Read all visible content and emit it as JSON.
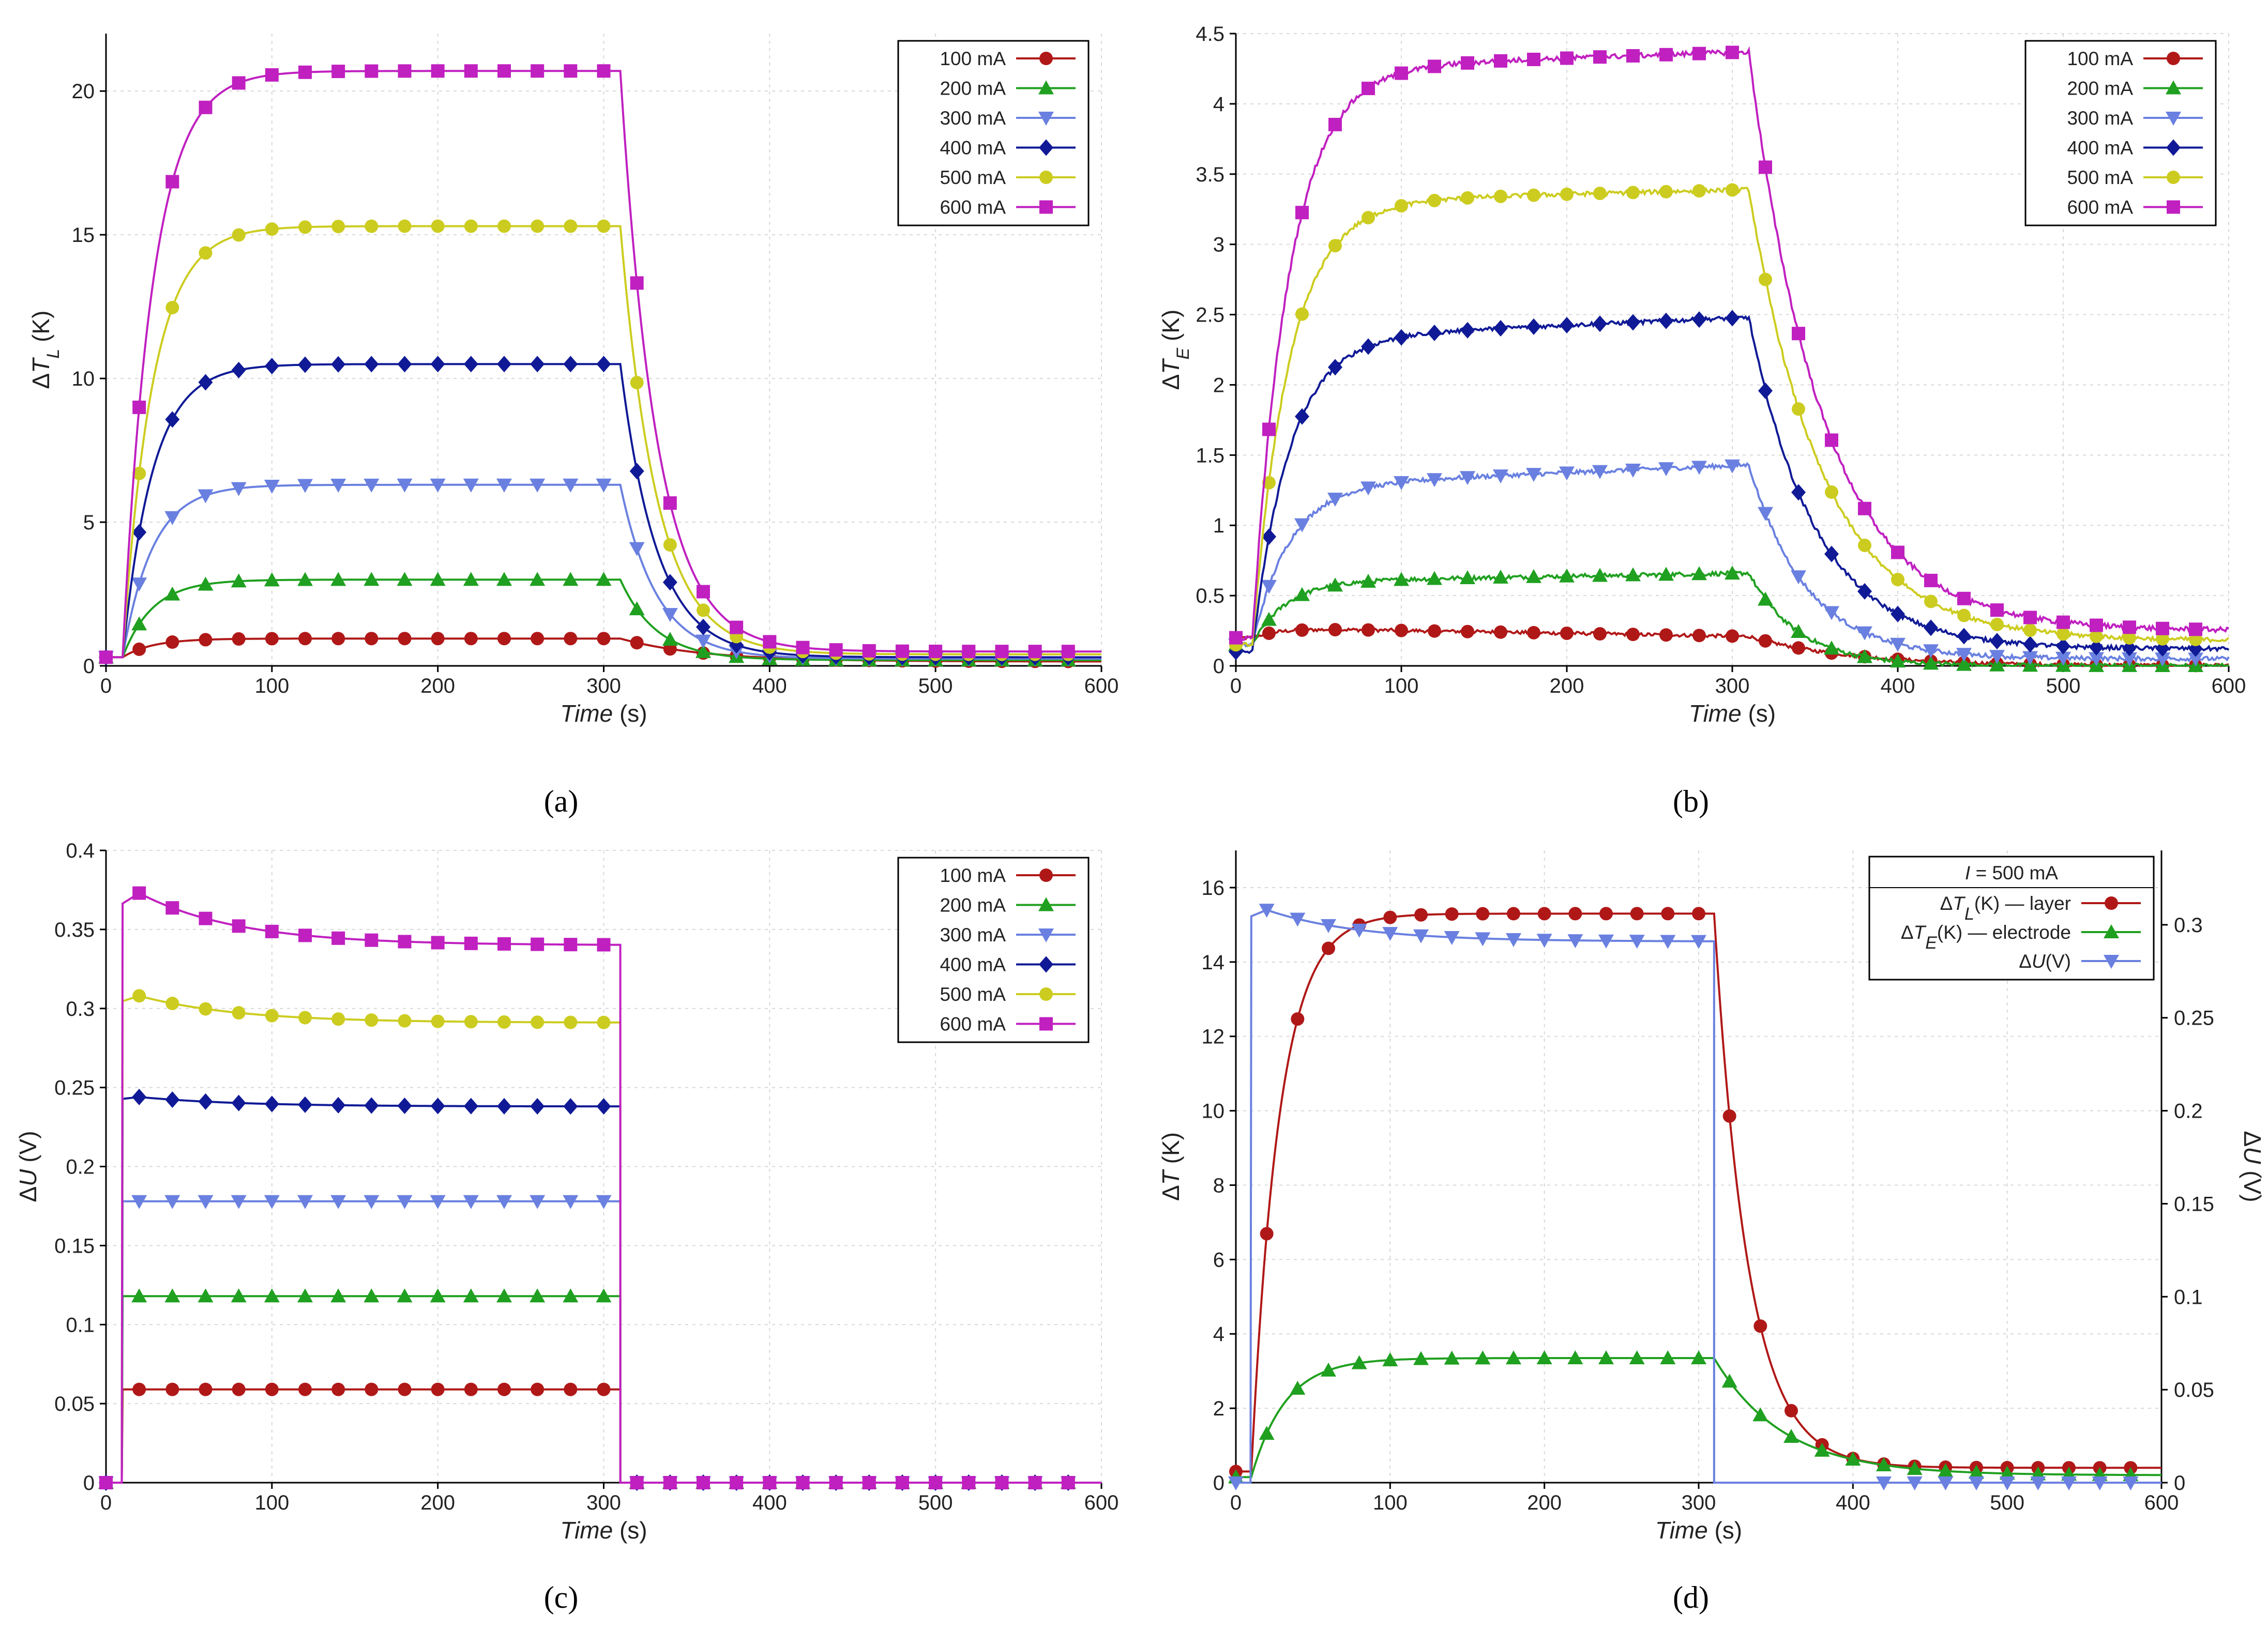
{
  "figure": {
    "captions": [
      "(a)",
      "(b)",
      "(c)",
      "(d)"
    ]
  },
  "colors": {
    "100 mA": "#b01818",
    "200 mA": "#20a020",
    "300 mA": "#6a80e0",
    "400 mA": "#101a96",
    "500 mA": "#cccc20",
    "600 mA": "#c020c0"
  },
  "chart_data": [
    {
      "id": "a",
      "type": "line",
      "xlabel_italic": "Time",
      "xlabel_unit": " (s)",
      "ylabel": "ΔT_L (K)",
      "xlim": [
        0,
        600
      ],
      "ylim": [
        0,
        22
      ],
      "xticks": [
        0,
        100,
        200,
        300,
        400,
        500,
        600
      ],
      "yticks": [
        0,
        5,
        10,
        15,
        20
      ],
      "ytick_labels": [
        "0",
        "5",
        "10",
        "15",
        "20"
      ],
      "legend": [
        "100 mA",
        "200 mA",
        "300 mA",
        "400 mA",
        "500 mA",
        "600 mA"
      ],
      "series": [
        {
          "name": "100 mA",
          "marker": "circle",
          "kind": "thermal",
          "start": 0.3,
          "plateau": 0.95,
          "tau": 18,
          "end": 0.15,
          "tauOff": 50,
          "noise": 0
        },
        {
          "name": "200 mA",
          "marker": "triangle-up",
          "kind": "thermal",
          "start": 0.3,
          "plateau": 3.0,
          "tau": 18,
          "end": 0.2,
          "tauOff": 22,
          "noise": 0
        },
        {
          "name": "300 mA",
          "marker": "triangle-down",
          "kind": "thermal",
          "start": 0.3,
          "plateau": 6.3,
          "tau": 18,
          "end": 0.25,
          "tauOff": 22,
          "noise": 0
        },
        {
          "name": "400 mA",
          "marker": "diamond",
          "kind": "thermal",
          "start": 0.3,
          "plateau": 10.5,
          "tau": 18,
          "end": 0.3,
          "tauOff": 22,
          "noise": 0
        },
        {
          "name": "500 mA",
          "marker": "circle",
          "kind": "thermal",
          "start": 0.3,
          "plateau": 15.3,
          "tau": 18,
          "end": 0.4,
          "tauOff": 22,
          "noise": 0
        },
        {
          "name": "600 mA",
          "marker": "square",
          "kind": "thermal",
          "start": 0.3,
          "plateau": 20.7,
          "tau": 18,
          "end": 0.5,
          "tauOff": 22,
          "noise": 0
        }
      ]
    },
    {
      "id": "b",
      "type": "line",
      "xlabel_italic": "Time",
      "xlabel_unit": " (s)",
      "ylabel": "ΔT_E (K)",
      "xlim": [
        0,
        600
      ],
      "ylim": [
        0,
        4.5
      ],
      "xticks": [
        0,
        100,
        200,
        300,
        400,
        500,
        600
      ],
      "yticks": [
        0,
        0.5,
        1,
        1.5,
        2,
        2.5,
        3,
        3.5,
        4,
        4.5
      ],
      "ytick_labels": [
        "0",
        "0.5",
        "1",
        "1.5",
        "2",
        "2.5",
        "3",
        "3.5",
        "4",
        "4.5"
      ],
      "legend": [
        "100 mA",
        "200 mA",
        "300 mA",
        "400 mA",
        "500 mA",
        "600 mA"
      ],
      "series": [
        {
          "name": "100 mA",
          "marker": "circle",
          "kind": "thermal",
          "start": 0.2,
          "plateau": 0.27,
          "tau": 15,
          "end": 0.0,
          "tauOff": 60,
          "noise": 0.012,
          "drift": -0.0002
        },
        {
          "name": "200 mA",
          "marker": "triangle-up",
          "kind": "thermal",
          "start": 0.15,
          "plateau": 0.6,
          "tau": 20,
          "end": 0.0,
          "tauOff": 30,
          "noise": 0.015,
          "drift": 0.0002
        },
        {
          "name": "300 mA",
          "marker": "triangle-down",
          "kind": "thermal",
          "start": 0.15,
          "plateau": 1.28,
          "tau": 22,
          "end": 0.05,
          "tauOff": 35,
          "noise": 0.015,
          "drift": 0.0005
        },
        {
          "name": "400 mA",
          "marker": "diamond",
          "kind": "thermal",
          "start": 0.1,
          "plateau": 2.33,
          "tau": 22,
          "end": 0.12,
          "tauOff": 40,
          "noise": 0.015,
          "drift": 0.0005
        },
        {
          "name": "500 mA",
          "marker": "circle",
          "kind": "thermal",
          "start": 0.15,
          "plateau": 3.3,
          "tau": 22,
          "end": 0.18,
          "tauOff": 45,
          "noise": 0.015,
          "drift": 0.0003
        },
        {
          "name": "600 mA",
          "marker": "square",
          "kind": "thermal",
          "start": 0.2,
          "plateau": 4.25,
          "tau": 22,
          "end": 0.25,
          "tauOff": 45,
          "noise": 0.018,
          "drift": 0.0004
        }
      ]
    },
    {
      "id": "c",
      "type": "line",
      "xlabel_italic": "Time",
      "xlabel_unit": " (s)",
      "ylabel": "ΔU (V)",
      "xlim": [
        0,
        600
      ],
      "ylim": [
        0,
        0.4
      ],
      "xticks": [
        0,
        100,
        200,
        300,
        400,
        500,
        600
      ],
      "yticks": [
        0,
        0.05,
        0.1,
        0.15,
        0.2,
        0.25,
        0.3,
        0.35,
        0.4
      ],
      "ytick_labels": [
        "0",
        "0.05",
        "0.1",
        "0.15",
        "0.2",
        "0.25",
        "0.3",
        "0.35",
        "0.4"
      ],
      "legend": [
        "100 mA",
        "200 mA",
        "300 mA",
        "400 mA",
        "500 mA",
        "600 mA"
      ],
      "series": [
        {
          "name": "100 mA",
          "marker": "circle",
          "kind": "voltage",
          "peak": 0.059,
          "final": 0.059
        },
        {
          "name": "200 mA",
          "marker": "triangle-up",
          "kind": "voltage",
          "peak": 0.118,
          "final": 0.118
        },
        {
          "name": "300 mA",
          "marker": "triangle-down",
          "kind": "voltage",
          "peak": 0.178,
          "final": 0.178
        },
        {
          "name": "400 mA",
          "marker": "diamond",
          "kind": "voltage",
          "peak": 0.244,
          "final": 0.238
        },
        {
          "name": "500 mA",
          "marker": "circle",
          "kind": "voltage",
          "peak": 0.308,
          "final": 0.291
        },
        {
          "name": "600 mA",
          "marker": "square",
          "kind": "voltage",
          "peak": 0.373,
          "final": 0.34
        }
      ]
    },
    {
      "id": "d",
      "type": "line",
      "xlabel_italic": "Time",
      "xlabel_unit": " (s)",
      "ylabel": "ΔT (K)",
      "ylabel_right": "ΔU (V)",
      "xlim": [
        0,
        600
      ],
      "ylim": [
        0,
        17
      ],
      "ylim_right": [
        0,
        0.34
      ],
      "xticks": [
        0,
        100,
        200,
        300,
        400,
        500,
        600
      ],
      "yticks": [
        0,
        2,
        4,
        6,
        8,
        10,
        12,
        14,
        16
      ],
      "ytick_labels": [
        "0",
        "2",
        "4",
        "6",
        "8",
        "10",
        "12",
        "14",
        "16"
      ],
      "yticks_right": [
        0,
        0.05,
        0.1,
        0.15,
        0.2,
        0.25,
        0.3
      ],
      "ytick_labels_right": [
        "0",
        "0.05",
        "0.1",
        "0.15",
        "0.2",
        "0.25",
        "0.3"
      ],
      "legend_title": "I = 500 mA",
      "legend": [
        "ΔT_L(K) — layer",
        "ΔT_E(K) — electrode",
        "ΔU(V)"
      ],
      "series": [
        {
          "name": "ΔT_L(K) — layer",
          "marker": "circle",
          "color": "#b01818",
          "axis": "left",
          "kind": "thermal",
          "start": 0.3,
          "plateau": 15.3,
          "tau": 18,
          "end": 0.4,
          "tauOff": 22,
          "noise": 0
        },
        {
          "name": "ΔT_E(K) — electrode",
          "marker": "triangle-up",
          "color": "#20a020",
          "axis": "left",
          "kind": "thermal",
          "start": 0.15,
          "plateau": 3.35,
          "tau": 22,
          "end": 0.2,
          "tauOff": 45,
          "noise": 0
        },
        {
          "name": "ΔU(V)",
          "marker": "triangle-down",
          "color": "#6a80e0",
          "axis": "right",
          "kind": "voltage",
          "peak": 0.308,
          "final": 0.291
        }
      ]
    }
  ]
}
